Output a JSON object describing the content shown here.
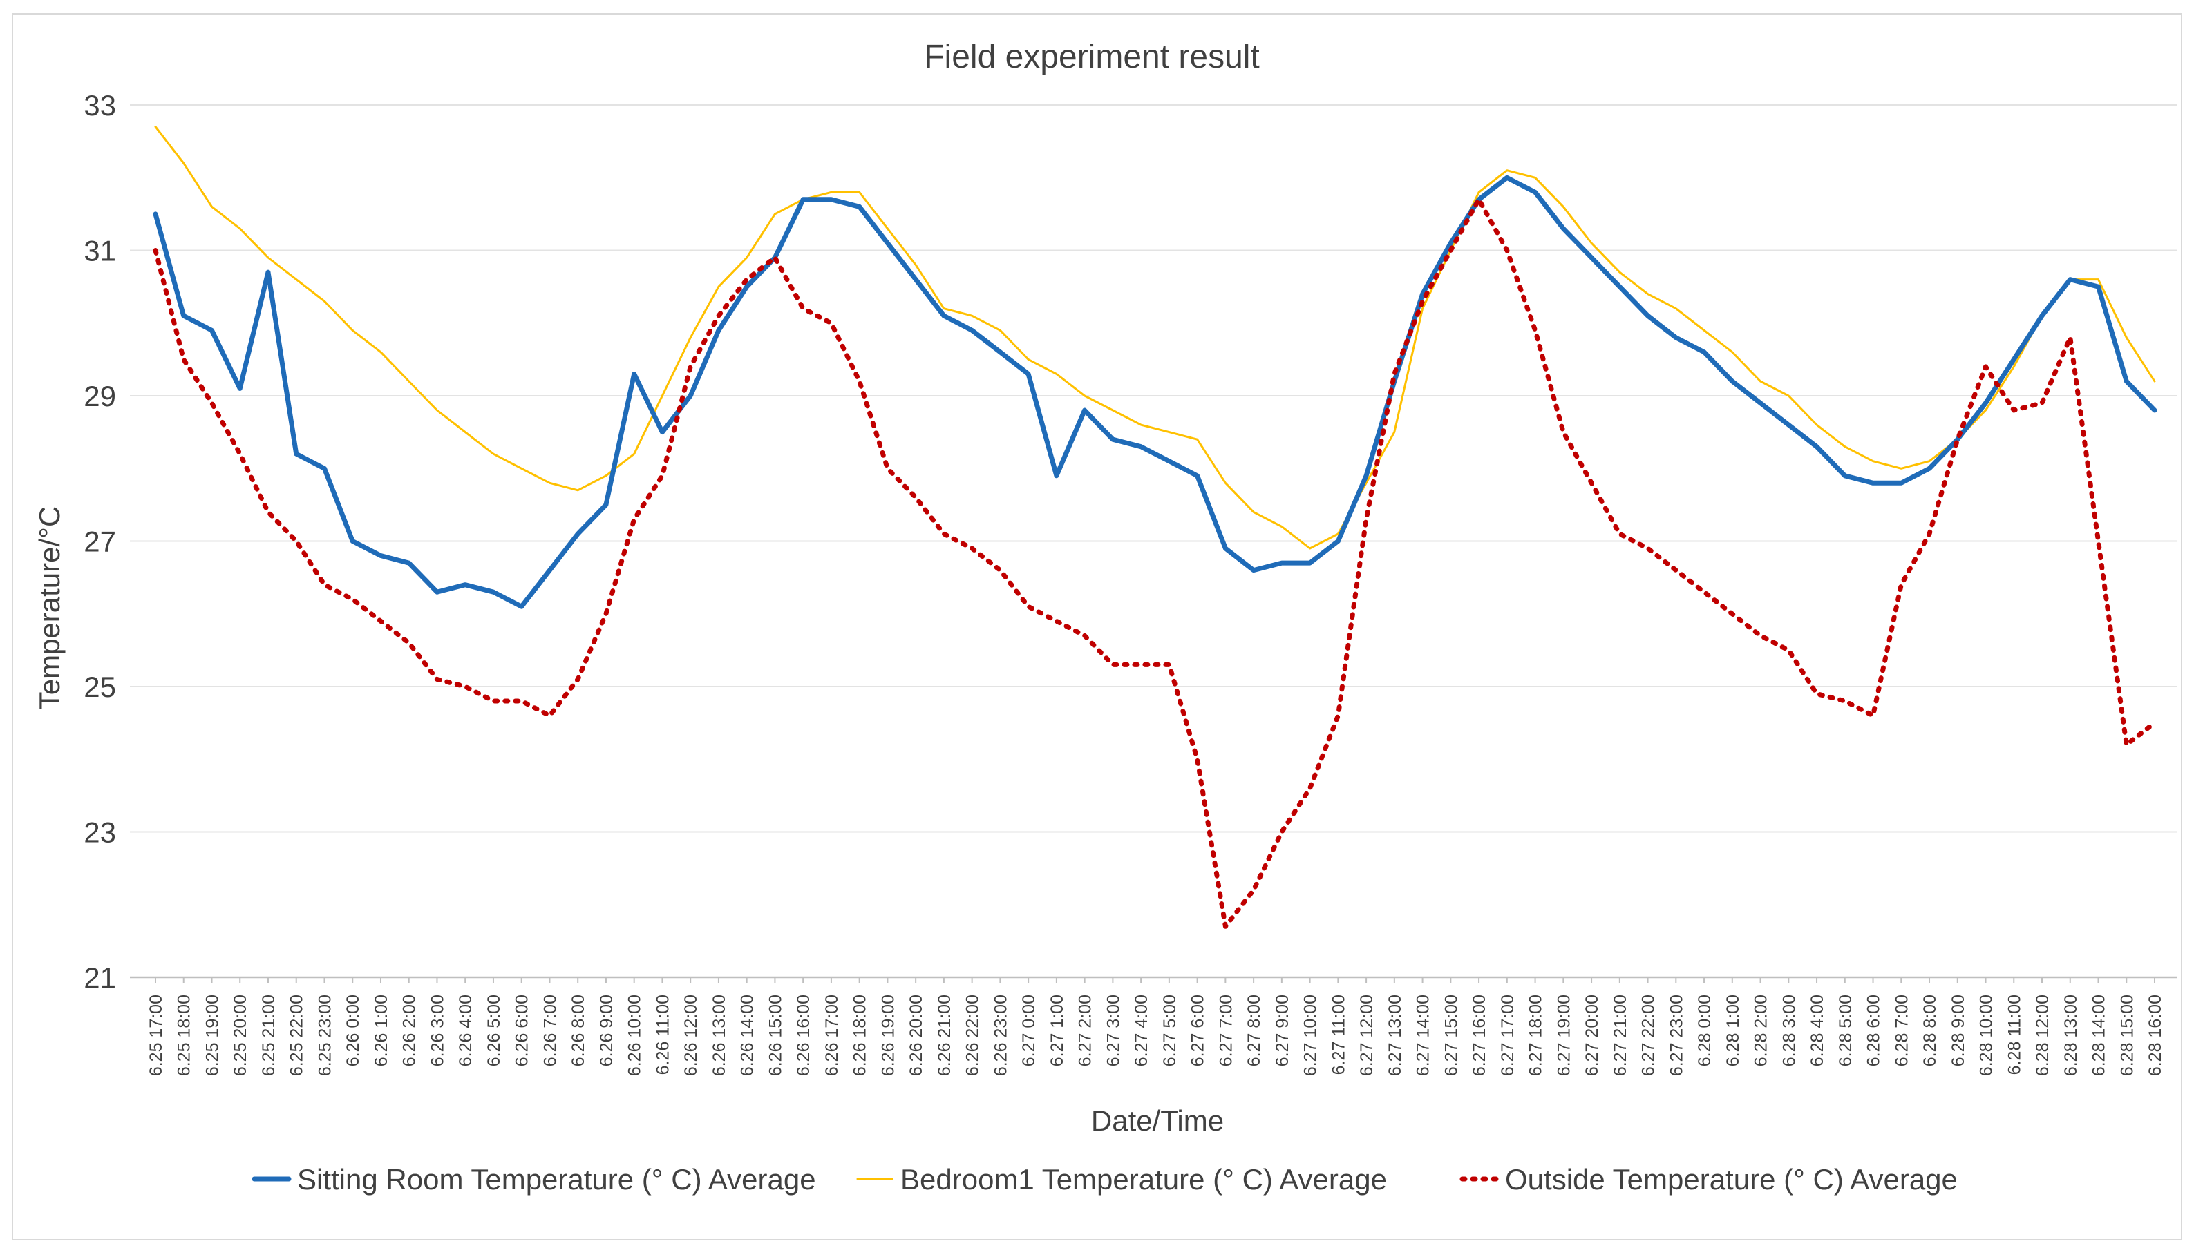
{
  "chart_data": {
    "type": "line",
    "title": "Field experiment result",
    "xlabel": "Date/Time",
    "ylabel": "Temperature/°C",
    "ylim": [
      21,
      33
    ],
    "yticks": [
      21,
      23,
      25,
      27,
      29,
      31,
      33
    ],
    "grid": true,
    "legend_position": "bottom",
    "categories": [
      "6.25 17:00",
      "6.25 18:00",
      "6.25 19:00",
      "6.25 20:00",
      "6.25 21:00",
      "6.25 22:00",
      "6.25 23:00",
      "6.26 0:00",
      "6.26 1:00",
      "6.26 2:00",
      "6.26 3:00",
      "6.26 4:00",
      "6.26 5:00",
      "6.26 6:00",
      "6.26 7:00",
      "6.26 8:00",
      "6.26 9:00",
      "6.26 10:00",
      "6.26 11:00",
      "6.26 12:00",
      "6.26 13:00",
      "6.26 14:00",
      "6.26 15:00",
      "6.26 16:00",
      "6.26 17:00",
      "6.26 18:00",
      "6.26 19:00",
      "6.26 20:00",
      "6.26 21:00",
      "6.26 22:00",
      "6.26 23:00",
      "6.27 0:00",
      "6.27 1:00",
      "6.27 2:00",
      "6.27 3:00",
      "6.27 4:00",
      "6.27 5:00",
      "6.27 6:00",
      "6.27 7:00",
      "6.27 8:00",
      "6.27 9:00",
      "6.27 10:00",
      "6.27 11:00",
      "6.27 12:00",
      "6.27 13:00",
      "6.27 14:00",
      "6.27 15:00",
      "6.27 16:00",
      "6.27 17:00",
      "6.27 18:00",
      "6.27 19:00",
      "6.27 20:00",
      "6.27 21:00",
      "6.27 22:00",
      "6.27 23:00",
      "6.28 0:00",
      "6.28 1:00",
      "6.28 2:00",
      "6.28 3:00",
      "6.28 4:00",
      "6.28 5:00",
      "6.28 6:00",
      "6.28 7:00",
      "6.28 8:00",
      "6.28 9:00",
      "6.28 10:00",
      "6.28 11:00",
      "6.28 12:00",
      "6.28 13:00",
      "6.28 14:00",
      "6.28 15:00",
      "6.28 16:00"
    ],
    "series": [
      {
        "name": "Sitting Room Temperature (° C) Average",
        "color": "#1F6BB8",
        "style": "solid-thick",
        "values": [
          31.5,
          30.1,
          29.9,
          29.1,
          30.7,
          28.2,
          28.0,
          27.0,
          26.8,
          26.7,
          26.3,
          26.4,
          26.3,
          26.1,
          26.6,
          27.1,
          27.5,
          29.3,
          28.5,
          29.0,
          29.9,
          30.5,
          30.9,
          31.7,
          31.7,
          31.6,
          31.1,
          30.6,
          30.1,
          29.9,
          29.6,
          29.3,
          27.9,
          28.8,
          28.4,
          28.3,
          28.1,
          27.9,
          26.9,
          26.6,
          26.7,
          26.7,
          27.0,
          27.9,
          29.2,
          30.4,
          31.1,
          31.7,
          32.0,
          31.8,
          31.3,
          30.9,
          30.5,
          30.1,
          29.8,
          29.6,
          29.2,
          28.9,
          28.6,
          28.3,
          27.9,
          27.8,
          27.8,
          28.0,
          28.4,
          28.9,
          29.5,
          30.1,
          30.6,
          30.5,
          29.2,
          28.8
        ]
      },
      {
        "name": "Bedroom1 Temperature (° C) Average",
        "color": "#FFC000",
        "style": "solid-thin",
        "values": [
          32.7,
          32.2,
          31.6,
          31.3,
          30.9,
          30.6,
          30.3,
          29.9,
          29.6,
          29.2,
          28.8,
          28.5,
          28.2,
          28.0,
          27.8,
          27.7,
          27.9,
          28.2,
          29.0,
          29.8,
          30.5,
          30.9,
          31.5,
          31.7,
          31.8,
          31.8,
          31.3,
          30.8,
          30.2,
          30.1,
          29.9,
          29.5,
          29.3,
          29.0,
          28.8,
          28.6,
          28.5,
          28.4,
          27.8,
          27.4,
          27.2,
          26.9,
          27.1,
          27.8,
          28.5,
          30.2,
          31.0,
          31.8,
          32.1,
          32.0,
          31.6,
          31.1,
          30.7,
          30.4,
          30.2,
          29.9,
          29.6,
          29.2,
          29.0,
          28.6,
          28.3,
          28.1,
          28.0,
          28.1,
          28.4,
          28.8,
          29.4,
          30.1,
          30.6,
          30.6,
          29.8,
          29.2
        ]
      },
      {
        "name": "Outside Temperature (° C) Average",
        "color": "#C00000",
        "style": "dotted",
        "values": [
          31.0,
          29.5,
          28.9,
          28.2,
          27.4,
          27.0,
          26.4,
          26.2,
          25.9,
          25.6,
          25.1,
          25.0,
          24.8,
          24.8,
          24.6,
          25.1,
          26.0,
          27.3,
          27.9,
          29.4,
          30.1,
          30.6,
          30.9,
          30.2,
          30.0,
          29.2,
          28.0,
          27.6,
          27.1,
          26.9,
          26.6,
          26.1,
          25.9,
          25.7,
          25.3,
          25.3,
          25.3,
          24.0,
          21.7,
          22.2,
          23.0,
          23.6,
          24.6,
          27.3,
          29.3,
          30.3,
          31.0,
          31.7,
          31.0,
          29.9,
          28.5,
          27.8,
          27.1,
          26.9,
          26.6,
          26.3,
          26.0,
          25.7,
          25.5,
          24.9,
          24.8,
          24.6,
          26.4,
          27.1,
          28.4,
          29.4,
          28.8,
          28.9,
          29.8,
          27.0,
          24.2,
          24.5
        ]
      }
    ]
  }
}
